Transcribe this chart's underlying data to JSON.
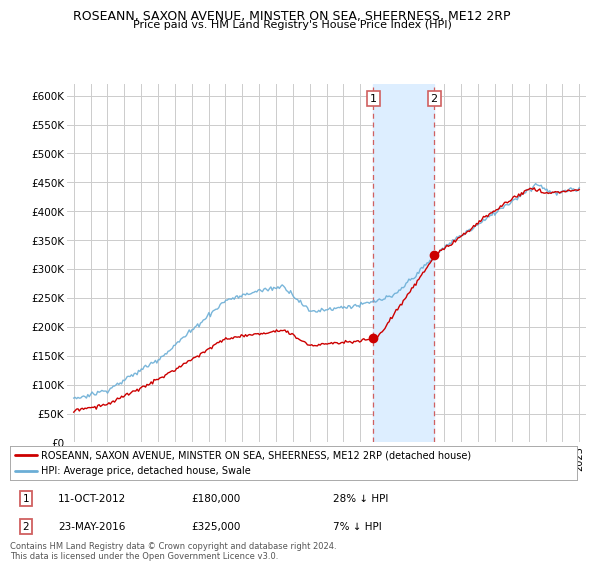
{
  "title": "ROSEANN, SAXON AVENUE, MINSTER ON SEA, SHEERNESS, ME12 2RP",
  "subtitle": "Price paid vs. HM Land Registry's House Price Index (HPI)",
  "ylim": [
    0,
    620000
  ],
  "yticks": [
    0,
    50000,
    100000,
    150000,
    200000,
    250000,
    300000,
    350000,
    400000,
    450000,
    500000,
    550000,
    600000
  ],
  "ytick_labels": [
    "£0",
    "£50K",
    "£100K",
    "£150K",
    "£200K",
    "£250K",
    "£300K",
    "£350K",
    "£400K",
    "£450K",
    "£500K",
    "£550K",
    "£600K"
  ],
  "hpi_color": "#6baed6",
  "price_color": "#cc0000",
  "sale1_date": 2012.78,
  "sale1_price": 180000,
  "sale2_date": 2016.39,
  "sale2_price": 325000,
  "shade_color": "#ddeeff",
  "vline_color": "#d06060",
  "legend_line1": "ROSEANN, SAXON AVENUE, MINSTER ON SEA, SHEERNESS, ME12 2RP (detached house)",
  "legend_line2": "HPI: Average price, detached house, Swale",
  "annotation1_date": "11-OCT-2012",
  "annotation1_price": "£180,000",
  "annotation1_hpi": "28% ↓ HPI",
  "annotation2_date": "23-MAY-2016",
  "annotation2_price": "£325,000",
  "annotation2_hpi": "7% ↓ HPI",
  "footer": "Contains HM Land Registry data © Crown copyright and database right 2024.\nThis data is licensed under the Open Government Licence v3.0.",
  "background_color": "#ffffff",
  "grid_color": "#cccccc"
}
